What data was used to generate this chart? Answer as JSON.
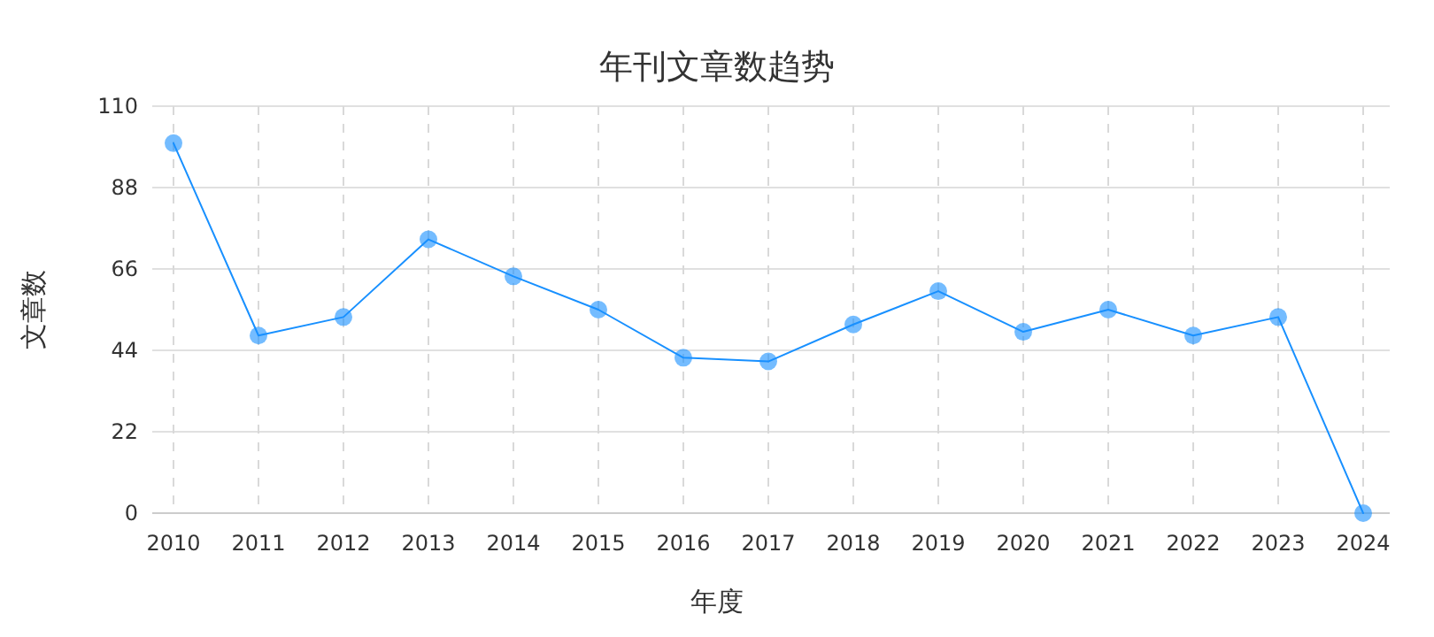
{
  "chart_data": {
    "type": "line",
    "title": "年刊文章数趋势",
    "xlabel": "年度",
    "ylabel": "文章数",
    "categories": [
      "2010",
      "2011",
      "2012",
      "2013",
      "2014",
      "2015",
      "2016",
      "2017",
      "2018",
      "2019",
      "2020",
      "2021",
      "2022",
      "2023",
      "2024"
    ],
    "series": [
      {
        "color": "#1890ff",
        "values": [
          100,
          48,
          53,
          74,
          64,
          55,
          42,
          41,
          51,
          60,
          49,
          55,
          48,
          53,
          0
        ]
      }
    ],
    "ylim": [
      0,
      110
    ],
    "yticks": [
      0,
      22,
      44,
      66,
      88,
      110
    ],
    "grid": true,
    "marker": "circle"
  }
}
